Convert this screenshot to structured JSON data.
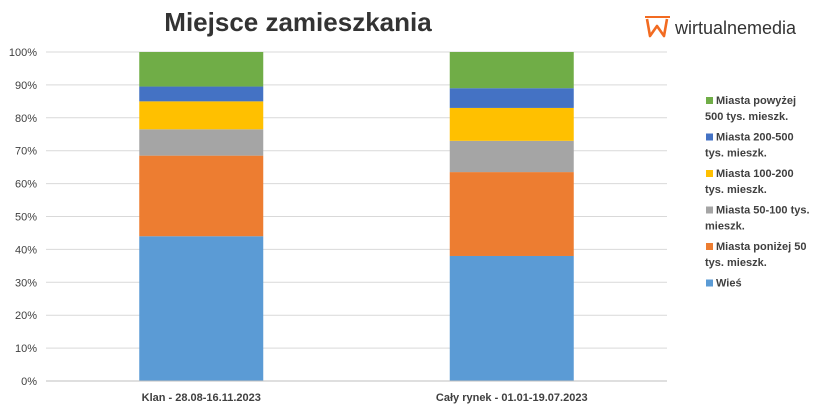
{
  "chart_data": {
    "type": "bar",
    "stacked": "percent",
    "title": "Miejsce zamieszkania",
    "categories": [
      "Klan - 28.08-16.11.2023",
      "Cały rynek - 01.01-19.07.2023"
    ],
    "series": [
      {
        "name": "Wieś",
        "color": "#5B9BD5",
        "values": [
          44,
          38
        ]
      },
      {
        "name": "Miasta poniżej 50 tys. mieszk.",
        "color": "#ED7D31",
        "values": [
          24.5,
          25.5
        ]
      },
      {
        "name": "Miasta 50-100 tys. mieszk.",
        "color": "#A5A5A5",
        "values": [
          8,
          9.5
        ]
      },
      {
        "name": "Miasta 100-200 tys. mieszk.",
        "color": "#FFC000",
        "values": [
          8.5,
          10
        ]
      },
      {
        "name": "Miasta 200-500 tys. mieszk.",
        "color": "#4472C4",
        "values": [
          4.5,
          6
        ]
      },
      {
        "name": "Miasta powyżej 500 tys. mieszk.",
        "color": "#70AD47",
        "values": [
          10.5,
          11
        ]
      }
    ],
    "legend": [
      {
        "line1": "Miasta powyżej",
        "line2": "500 tys. mieszk.",
        "color": "#70AD47"
      },
      {
        "line1": "Miasta 200-500",
        "line2": "tys. mieszk.",
        "color": "#4472C4"
      },
      {
        "line1": "Miasta 100-200",
        "line2": "tys. mieszk.",
        "color": "#FFC000"
      },
      {
        "line1": "Miasta 50-100 tys.",
        "line2": "mieszk.",
        "color": "#A5A5A5"
      },
      {
        "line1": "Miasta poniżej 50",
        "line2": "tys. mieszk.",
        "color": "#ED7D31"
      },
      {
        "line1": "Wieś",
        "line2": "",
        "color": "#5B9BD5"
      }
    ],
    "legend_position": "right",
    "ylim": [
      0,
      100
    ],
    "yticks": [
      "0%",
      "10%",
      "20%",
      "30%",
      "40%",
      "50%",
      "60%",
      "70%",
      "80%",
      "90%",
      "100%"
    ],
    "grid": true
  },
  "logo": {
    "text": "wirtualnemedia",
    "color": "#F26B21"
  }
}
